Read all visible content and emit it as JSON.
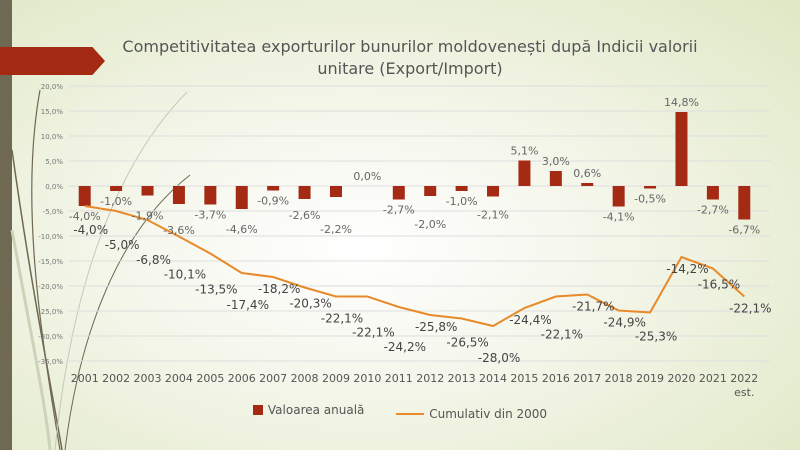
{
  "chart_data": {
    "type": "bar+line",
    "title": "Competitivitatea  exporturilor bunurilor moldovenești  după Indicii valorii unitare (Export/Import)",
    "categories": [
      "2001",
      "2002",
      "2003",
      "2004",
      "2005",
      "2006",
      "2007",
      "2008",
      "2009",
      "2010",
      "2011",
      "2012",
      "2013",
      "2014",
      "2015",
      "2016",
      "2017",
      "2018",
      "2019",
      "2020",
      "2021",
      "2022 est."
    ],
    "series": [
      {
        "name": "Valoarea anuală",
        "type": "bar",
        "color": "#a52a14",
        "values": [
          -4.0,
          -1.0,
          -1.9,
          -3.6,
          -3.7,
          -4.6,
          -0.9,
          -2.6,
          -2.2,
          0.0,
          -2.7,
          -2.0,
          -1.0,
          -2.1,
          5.1,
          3.0,
          0.6,
          -4.1,
          -0.5,
          14.8,
          -2.7,
          -6.7
        ],
        "labels": [
          "-4,0%",
          "-1,0%",
          "-1,9%",
          "-3,6%",
          "-3,7%",
          "-4,6%",
          "-0,9%",
          "-2,6%",
          "-2,2%",
          "0,0%",
          "-2,7%",
          "-2,0%",
          "-1,0%",
          "-2,1%",
          "5,1%",
          "3,0%",
          "0,6%",
          "-4,1%",
          "-0,5%",
          "14,8%",
          "-2,7%",
          "-6,7%"
        ]
      },
      {
        "name": "Cumulativ din 2000",
        "type": "line",
        "color": "#e8892a",
        "values": [
          -4.0,
          -5.0,
          -6.8,
          -10.1,
          -13.5,
          -17.4,
          -18.2,
          -20.3,
          -22.1,
          -22.1,
          -24.2,
          -25.8,
          -26.5,
          -28.0,
          -24.4,
          -22.1,
          -21.7,
          -24.9,
          -25.3,
          -14.2,
          -16.5,
          -22.1
        ],
        "labels": [
          "-4,0%",
          "-5,0%",
          "-6,8%",
          "-10,1%",
          "-13,5%",
          "-17,4%",
          "-18,2%",
          "-20,3%",
          "-22,1%",
          "-22,1%",
          "-24,2%",
          "-25,8%",
          "-26,5%",
          "-28,0%",
          "-24,4%",
          "-22,1%",
          "-21,7%",
          "-24,9%",
          "-25,3%",
          "-14,2%",
          "-16,5%",
          "-22,1%"
        ]
      }
    ],
    "ylim": [
      -35,
      20
    ],
    "yticks": [
      "20,0%",
      "15,0%",
      "10,0%",
      "5,0%",
      "0,0%",
      "-5,0%",
      "-10,0%",
      "-15,0%",
      "-20,0%",
      "-25,0%",
      "-30,0%",
      "-35,0%"
    ],
    "grid": true,
    "legend": "bottom"
  }
}
